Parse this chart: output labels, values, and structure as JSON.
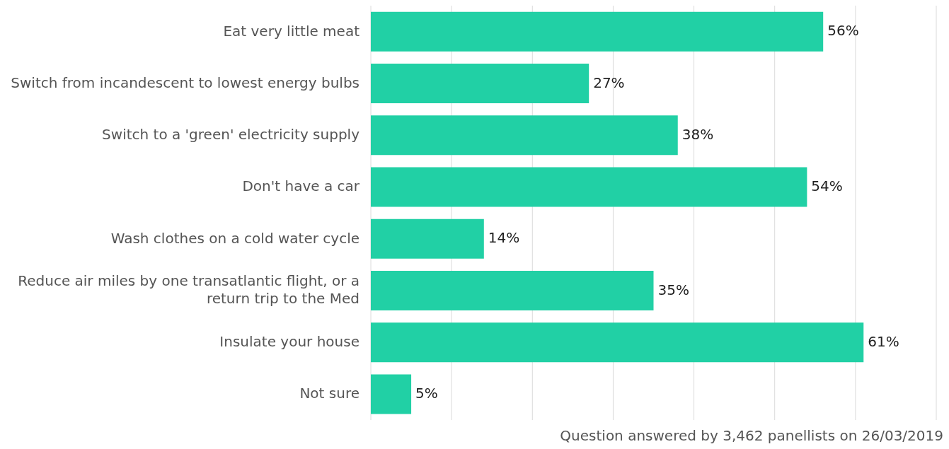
{
  "chart_data": {
    "type": "bar",
    "orientation": "horizontal",
    "categories": [
      "Eat very little meat",
      "Switch from incandescent to lowest energy bulbs",
      "Switch to a 'green' electricity supply",
      "Don't have a car",
      "Wash clothes on a cold water cycle",
      "Reduce air miles by one transatlantic flight, or a return trip to the Med",
      "Insulate your house",
      "Not sure"
    ],
    "values": [
      56,
      27,
      38,
      54,
      14,
      35,
      61,
      5
    ],
    "value_labels": [
      "56%",
      "27%",
      "38%",
      "54%",
      "14%",
      "35%",
      "61%",
      "5%"
    ],
    "color": "#21d0a5",
    "xlim": [
      0,
      70
    ],
    "xticks": [
      {
        "value": 0,
        "label": null
      },
      {
        "value": 10,
        "label": null
      },
      {
        "value": 20,
        "label": null
      },
      {
        "value": 30,
        "label": null
      },
      {
        "value": 40,
        "label": null
      },
      {
        "value": 50,
        "label": null
      },
      {
        "value": 60,
        "label": null
      },
      {
        "value": 70,
        "label": null
      }
    ],
    "tick_labels": "y",
    "grid": "x",
    "annotations": [
      "Question answered by 3,462 panellists on 26/03/2019"
    ]
  }
}
